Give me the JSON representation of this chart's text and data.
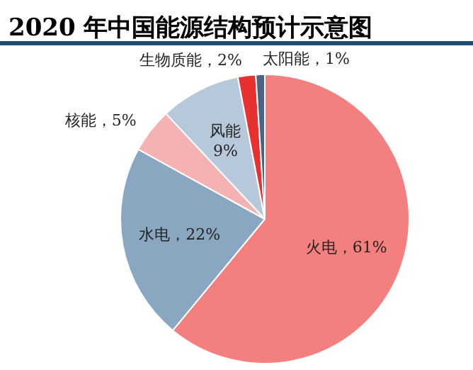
{
  "chart_data": {
    "type": "pie",
    "title": "2020 年中国能源结构预计示意图",
    "categories": [
      "火电",
      "水电",
      "核能",
      "风能",
      "生物质能",
      "太阳能"
    ],
    "values": [
      61,
      22,
      5,
      9,
      2,
      1
    ],
    "colors": [
      "#f47f7f",
      "#8aa7c1",
      "#f4b2b2",
      "#b7c8da",
      "#e8302f",
      "#4d6184"
    ],
    "value_labels": [
      "61%",
      "22%",
      "5%",
      "9%",
      "2%",
      "1%"
    ],
    "legend": false
  }
}
